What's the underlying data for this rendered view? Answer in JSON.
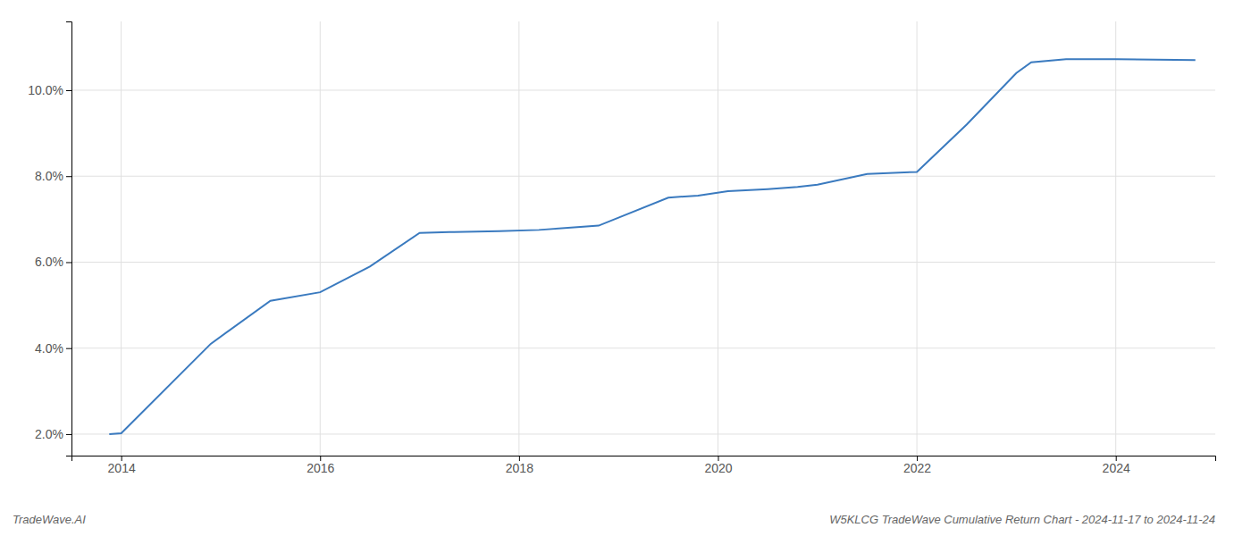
{
  "chart_data": {
    "type": "line",
    "title": "W5KLCG TradeWave Cumulative Return Chart - 2024-11-17 to 2024-11-24",
    "annotations": [
      "TradeWave.AI"
    ],
    "x": [
      2013.88,
      2014.0,
      2014.9,
      2015.5,
      2016.0,
      2016.5,
      2017.0,
      2017.3,
      2017.8,
      2018.2,
      2018.8,
      2019.5,
      2019.8,
      2020.1,
      2020.5,
      2020.8,
      2021.0,
      2021.5,
      2022.0,
      2022.5,
      2023.0,
      2023.15,
      2023.5,
      2024.0,
      2024.8
    ],
    "values": [
      2.0,
      2.02,
      4.1,
      5.1,
      5.3,
      5.9,
      6.68,
      6.7,
      6.72,
      6.75,
      6.85,
      7.5,
      7.55,
      7.65,
      7.7,
      7.75,
      7.8,
      8.05,
      8.1,
      9.2,
      10.4,
      10.65,
      10.72,
      10.72,
      10.7
    ],
    "color": "#3a7abf",
    "xlim": [
      2013.5,
      2025.0
    ],
    "ylim": [
      1.5,
      11.6
    ],
    "xticks": [
      2014,
      2016,
      2018,
      2020,
      2022,
      2024
    ],
    "yticks": [
      {
        "value": 2.0,
        "label": "2.0%"
      },
      {
        "value": 4.0,
        "label": "4.0%"
      },
      {
        "value": 6.0,
        "label": "6.0%"
      },
      {
        "value": 8.0,
        "label": "8.0%"
      },
      {
        "value": 10.0,
        "label": "10.0%"
      }
    ],
    "grid": true
  }
}
